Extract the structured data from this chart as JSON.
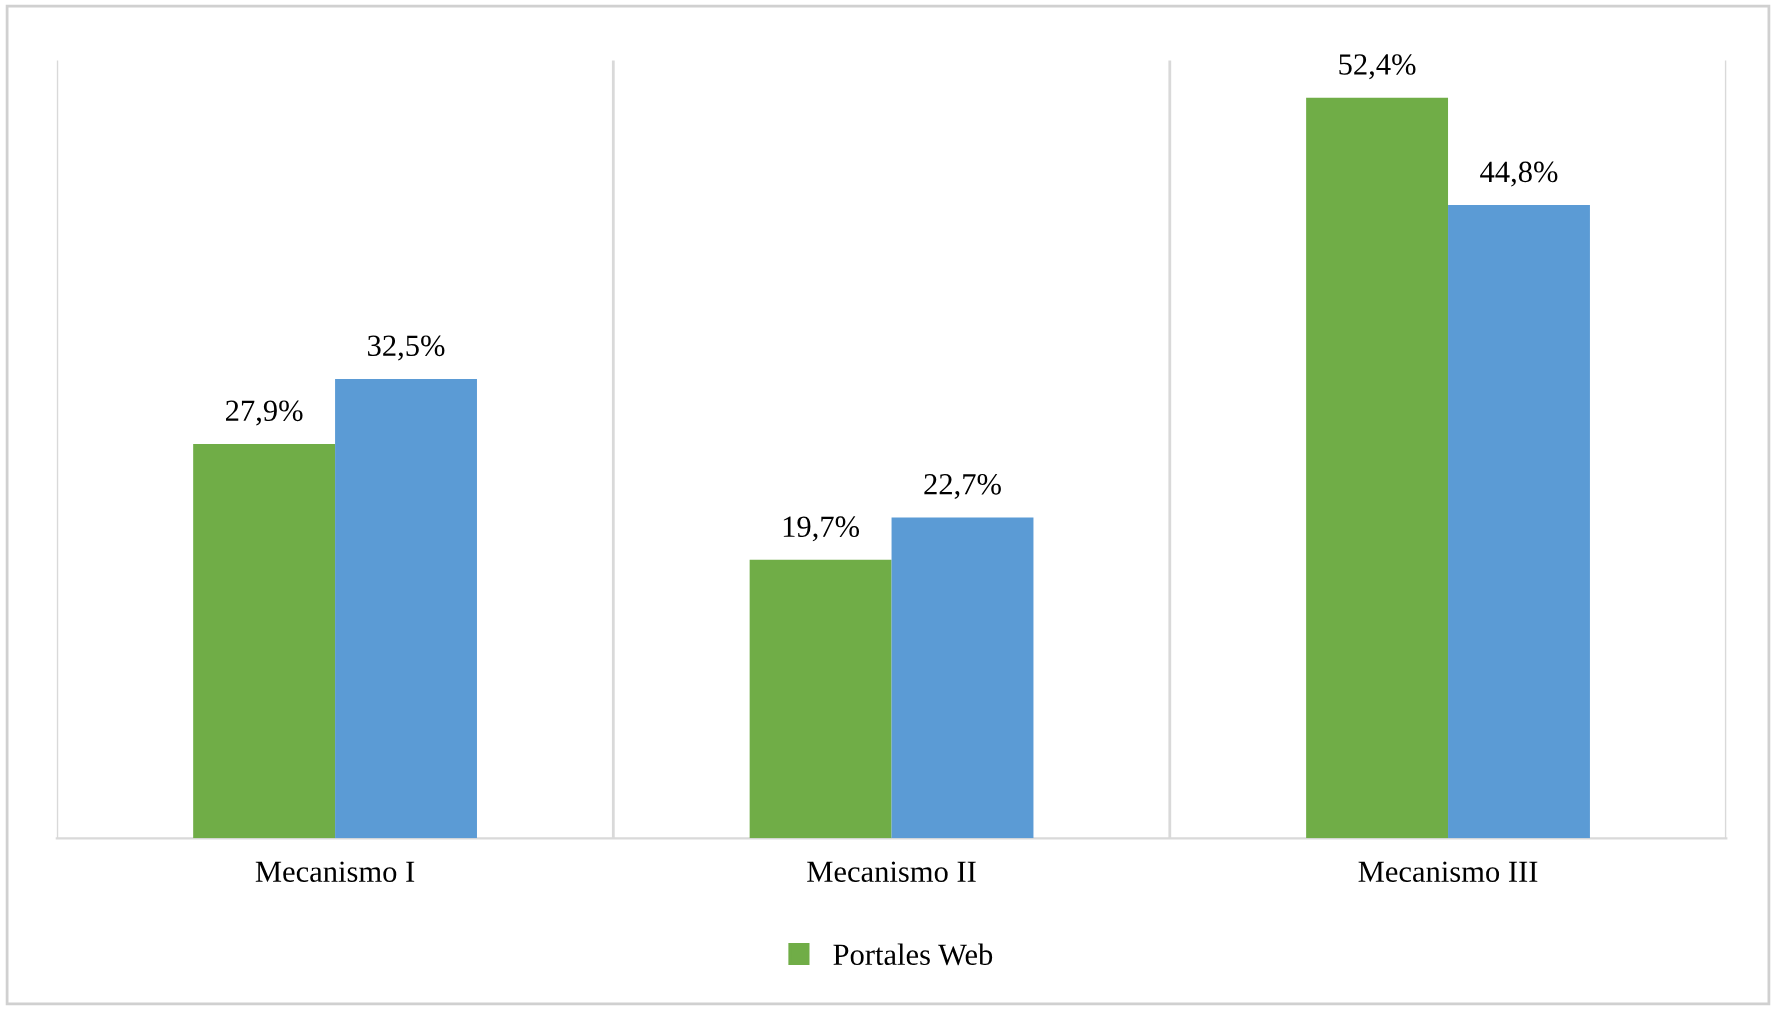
{
  "chart_data": {
    "type": "bar",
    "categories": [
      "Mecanismo I",
      "Mecanismo II",
      "Mecanismo III"
    ],
    "series": [
      {
        "name": "Portales Web",
        "color": "#70ad47",
        "values": [
          27.9,
          19.7,
          52.4
        ],
        "value_labels": [
          "27,9%",
          "19,7%",
          "52,4%"
        ]
      },
      {
        "color": "#5b9bd5",
        "values": [
          32.5,
          22.7,
          44.8
        ],
        "value_labels": [
          "32,5%",
          "22,7%",
          "44,8%"
        ]
      }
    ],
    "grid": "x",
    "legend": "bottom",
    "tick_labels": "x"
  }
}
